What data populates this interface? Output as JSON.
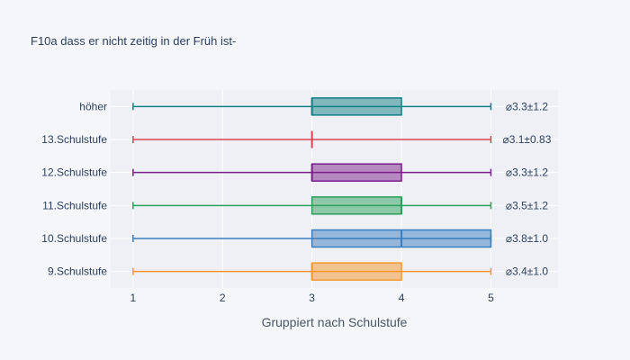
{
  "chart_data": {
    "type": "box",
    "orientation": "horizontal",
    "title": "F10a dass er nicht zeitig in der Früh ist-",
    "xlabel": "Gruppiert nach Schulstufe",
    "ylabel": "",
    "xlim": [
      0.75,
      5.75
    ],
    "xticks": [
      1,
      2,
      3,
      4,
      5
    ],
    "grid": true,
    "categories": [
      "9.Schulstufe",
      "10.Schulstufe",
      "11.Schulstufe",
      "12.Schulstufe",
      "13.Schulstufe",
      "höher"
    ],
    "series": [
      {
        "category": "9.Schulstufe",
        "min": 1,
        "q1": 3,
        "median": 3,
        "q3": 4,
        "max": 5,
        "stat": "⌀3.4±1.0",
        "color": "#f6962b"
      },
      {
        "category": "10.Schulstufe",
        "min": 1,
        "q1": 3,
        "median": 4,
        "q3": 5,
        "max": 5,
        "stat": "⌀3.8±1.0",
        "color": "#3a7ebf"
      },
      {
        "category": "11.Schulstufe",
        "min": 1,
        "q1": 3,
        "median": 4,
        "q3": 4,
        "max": 5,
        "stat": "⌀3.5±1.2",
        "color": "#2ca05a"
      },
      {
        "category": "12.Schulstufe",
        "min": 1,
        "q1": 3,
        "median": 3,
        "q3": 4,
        "max": 5,
        "stat": "⌀3.3±1.2",
        "color": "#7b1f8a"
      },
      {
        "category": "13.Schulstufe",
        "min": 1,
        "q1": 3,
        "median": 3,
        "q3": 3,
        "max": 5,
        "stat": "⌀3.1±0.83",
        "color": "#d94452"
      },
      {
        "category": "höher",
        "min": 1,
        "q1": 3,
        "median": 3,
        "q3": 4,
        "max": 5,
        "stat": "⌀3.3±1.2",
        "color": "#138086"
      }
    ]
  }
}
